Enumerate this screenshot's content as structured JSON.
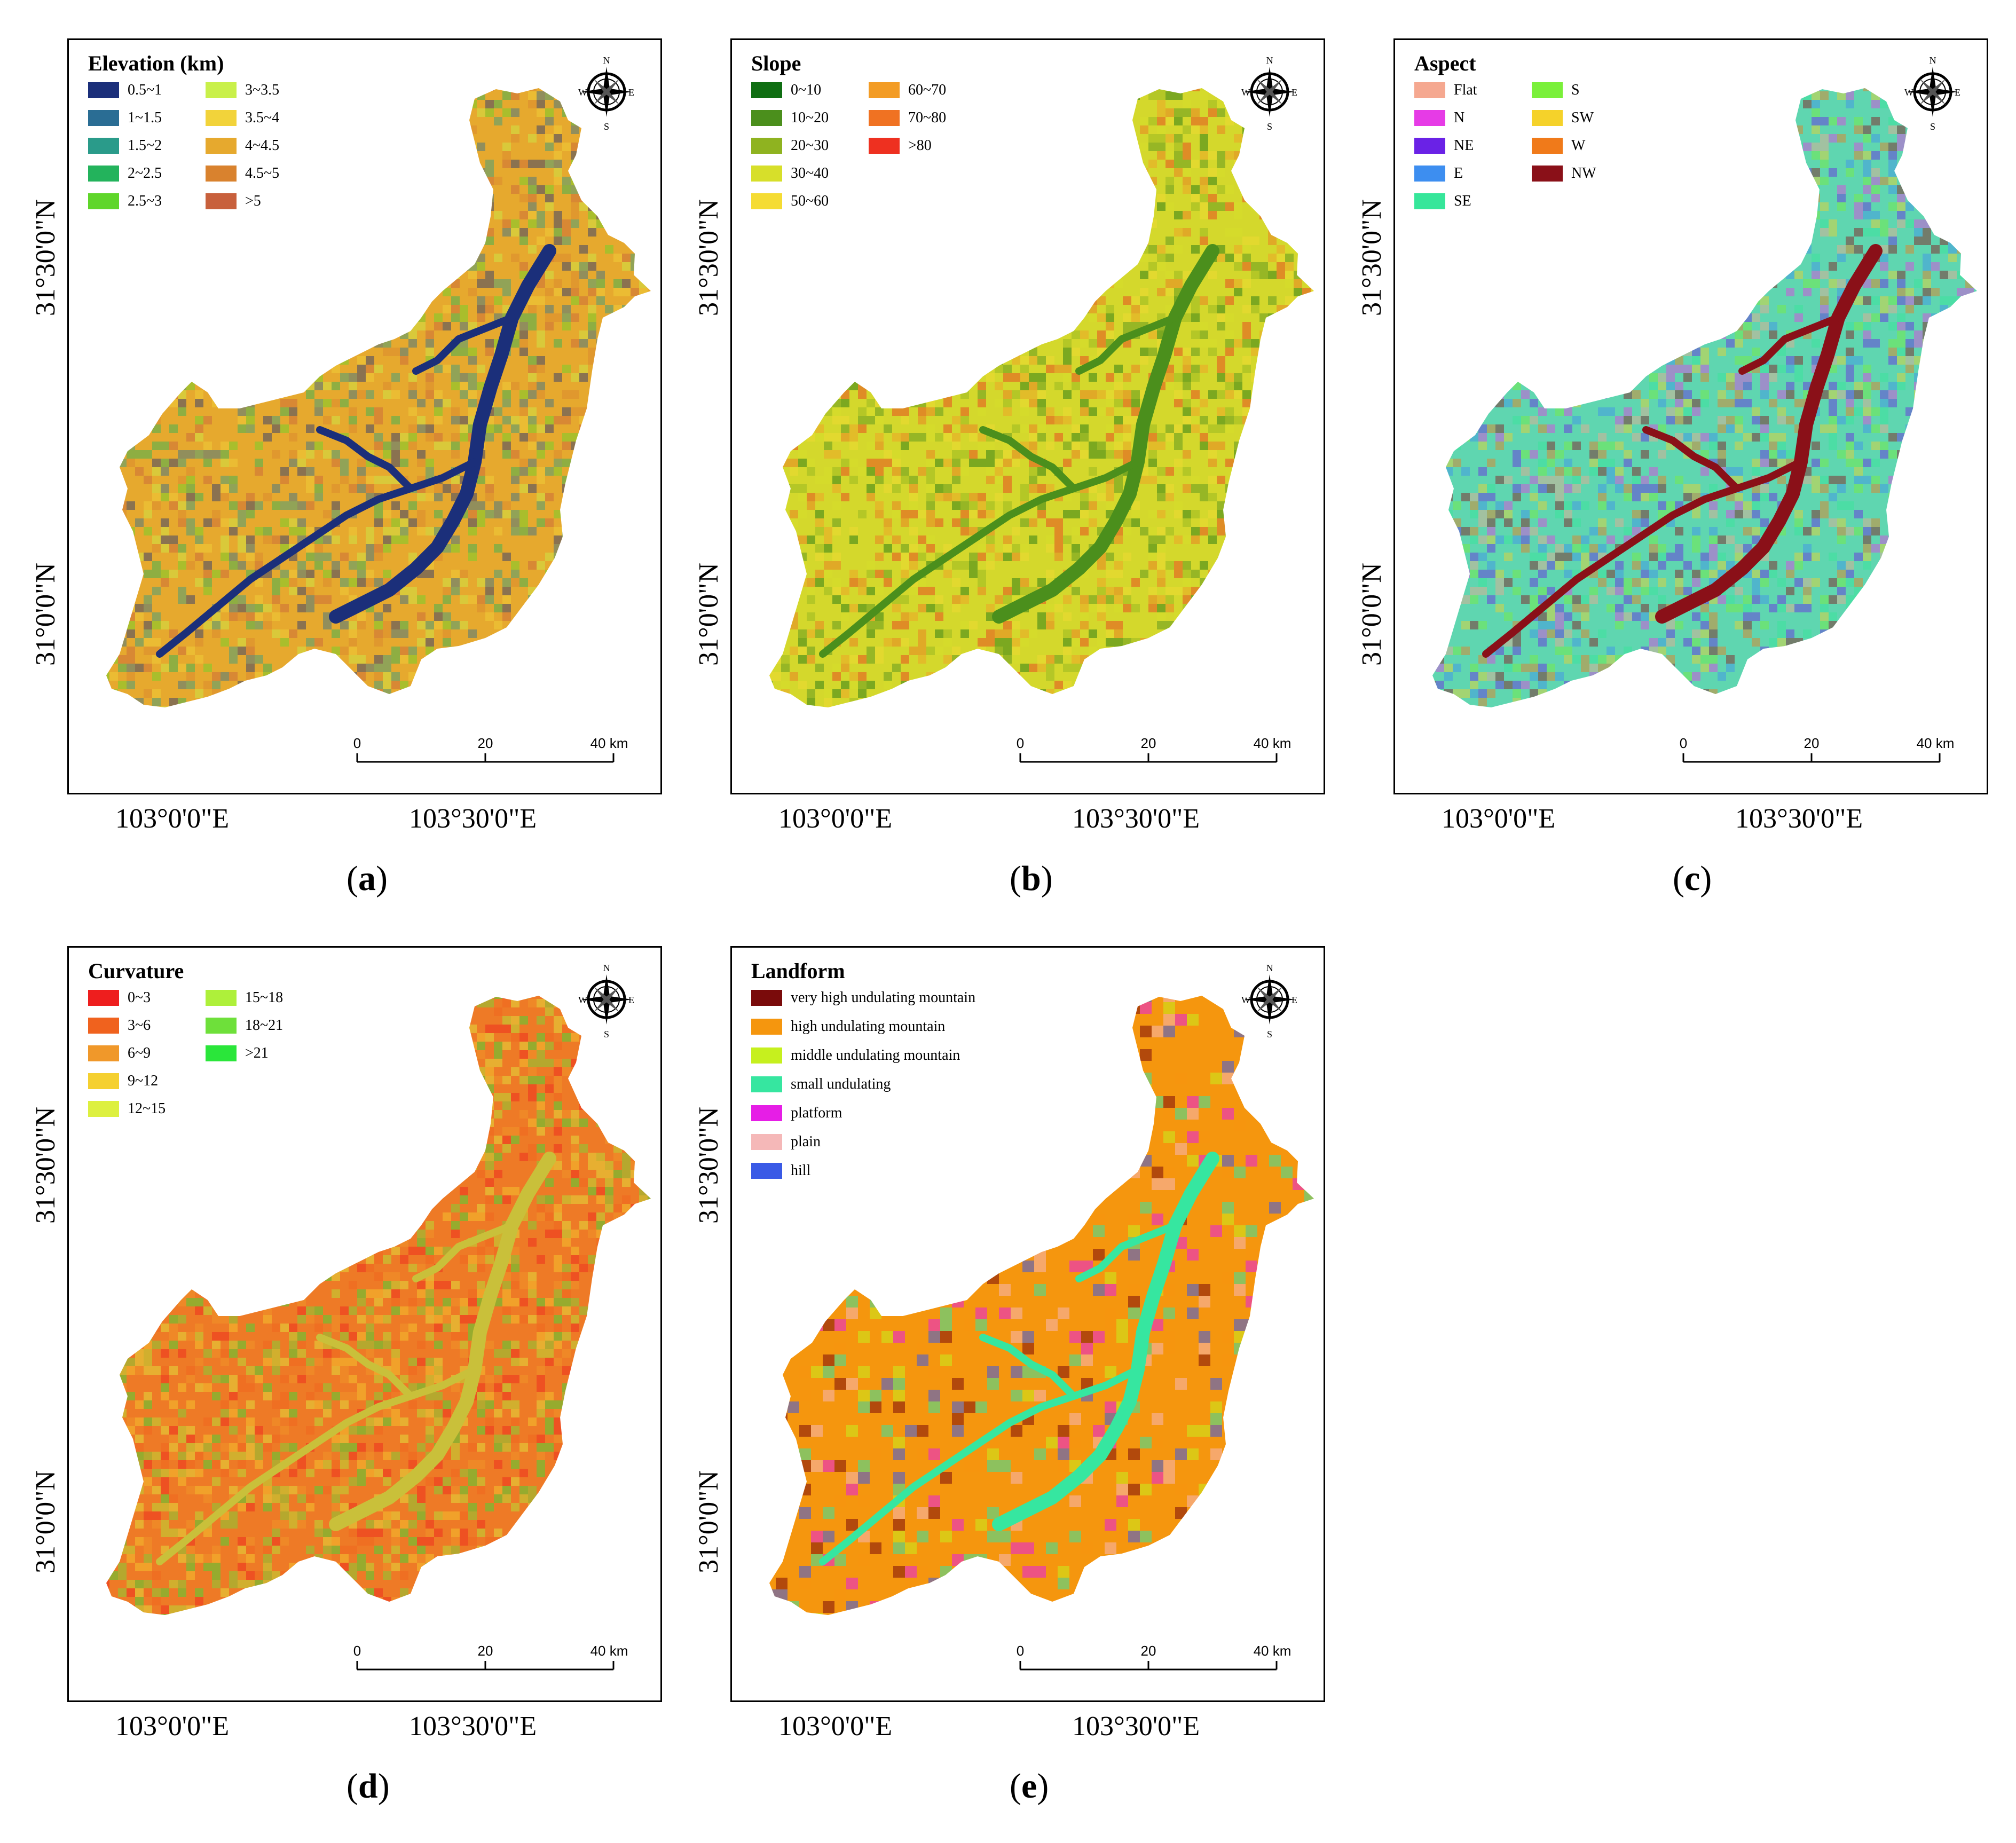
{
  "panels": [
    {
      "id": "a",
      "legend_title": "Elevation (km)",
      "legend": [
        {
          "label": "0.5~1",
          "color": "#1b2f7a"
        },
        {
          "label": "1~1.5",
          "color": "#2a6d94"
        },
        {
          "label": "1.5~2",
          "color": "#2a9b8a"
        },
        {
          "label": "2~2.5",
          "color": "#23b35c"
        },
        {
          "label": "2.5~3",
          "color": "#5fd62a"
        },
        {
          "label": "3~3.5",
          "color": "#c9f04a"
        },
        {
          "label": "3.5~4",
          "color": "#f2d33a"
        },
        {
          "label": "4~4.5",
          "color": "#e6a92e"
        },
        {
          "label": "4.5~5",
          "color": "#d9822e"
        },
        {
          "label": ">5",
          "color": "#c8603c"
        }
      ],
      "map_fill": "#e6a92e",
      "river_color": "#1b2f7a",
      "caption": "a"
    },
    {
      "id": "b",
      "legend_title": "Slope",
      "legend": [
        {
          "label": "0~10",
          "color": "#0f6e12"
        },
        {
          "label": "10~20",
          "color": "#4b8f1c"
        },
        {
          "label": "20~30",
          "color": "#8fb320"
        },
        {
          "label": "30~40",
          "color": "#d7df2a"
        },
        {
          "label": "50~60",
          "color": "#f5dc33"
        },
        {
          "label": "60~70",
          "color": "#f39c25"
        },
        {
          "label": "70~80",
          "color": "#f07222"
        },
        {
          "label": ">80",
          "color": "#ee3020"
        }
      ],
      "map_fill": "#d4d82c",
      "river_color": "#4b8f1c",
      "caption": "b"
    },
    {
      "id": "c",
      "legend_title": "Aspect",
      "legend": [
        {
          "label": "Flat",
          "color": "#f5a890"
        },
        {
          "label": "N",
          "color": "#e63be6"
        },
        {
          "label": "NE",
          "color": "#6a22e6"
        },
        {
          "label": "E",
          "color": "#3d8ef0"
        },
        {
          "label": "SE",
          "color": "#36e69a"
        },
        {
          "label": "S",
          "color": "#7af03a"
        },
        {
          "label": "SW",
          "color": "#f5d22a"
        },
        {
          "label": "W",
          "color": "#f07a1a"
        },
        {
          "label": "NW",
          "color": "#8a1018"
        }
      ],
      "map_fill": "#5fd6b0",
      "river_color": "#8a1018",
      "caption": "c"
    },
    {
      "id": "d",
      "legend_title": "Curvature",
      "legend": [
        {
          "label": "0~3",
          "color": "#ee1e1e"
        },
        {
          "label": "3~6",
          "color": "#f0621e"
        },
        {
          "label": "6~9",
          "color": "#f0982a"
        },
        {
          "label": "9~12",
          "color": "#f5d030"
        },
        {
          "label": "12~15",
          "color": "#ddf040"
        },
        {
          "label": "15~18",
          "color": "#aef03a"
        },
        {
          "label": "18~21",
          "color": "#6ee03a"
        },
        {
          "label": ">21",
          "color": "#2ae63a"
        }
      ],
      "map_fill": "#ee7a26",
      "river_color": "#c9c03a",
      "caption": "d"
    },
    {
      "id": "e",
      "legend_title": "Landform",
      "legend": [
        {
          "label": "very high undulating mountain",
          "color": "#7a0b0b"
        },
        {
          "label": "high undulating mountain",
          "color": "#f5960e"
        },
        {
          "label": "middle undulating mountain",
          "color": "#c6f01e"
        },
        {
          "label": "small undulating",
          "color": "#36e6a0"
        },
        {
          "label": "platform",
          "color": "#e61ee6"
        },
        {
          "label": "plain",
          "color": "#f5b8b8"
        },
        {
          "label": "hill",
          "color": "#3a5ae6"
        }
      ],
      "map_fill": "#f5960e",
      "river_color": "#36e6a0",
      "caption": "e"
    }
  ],
  "compass": {
    "n": "N",
    "s": "S",
    "e": "E",
    "w": "W"
  },
  "scale": {
    "ticks": [
      "0",
      "20",
      "40 km"
    ]
  },
  "lat_labels": [
    "31°30'0\"N",
    "31°0'0\"N"
  ],
  "lon_labels": [
    "103°0'0\"E",
    "103°30'0\"E"
  ]
}
